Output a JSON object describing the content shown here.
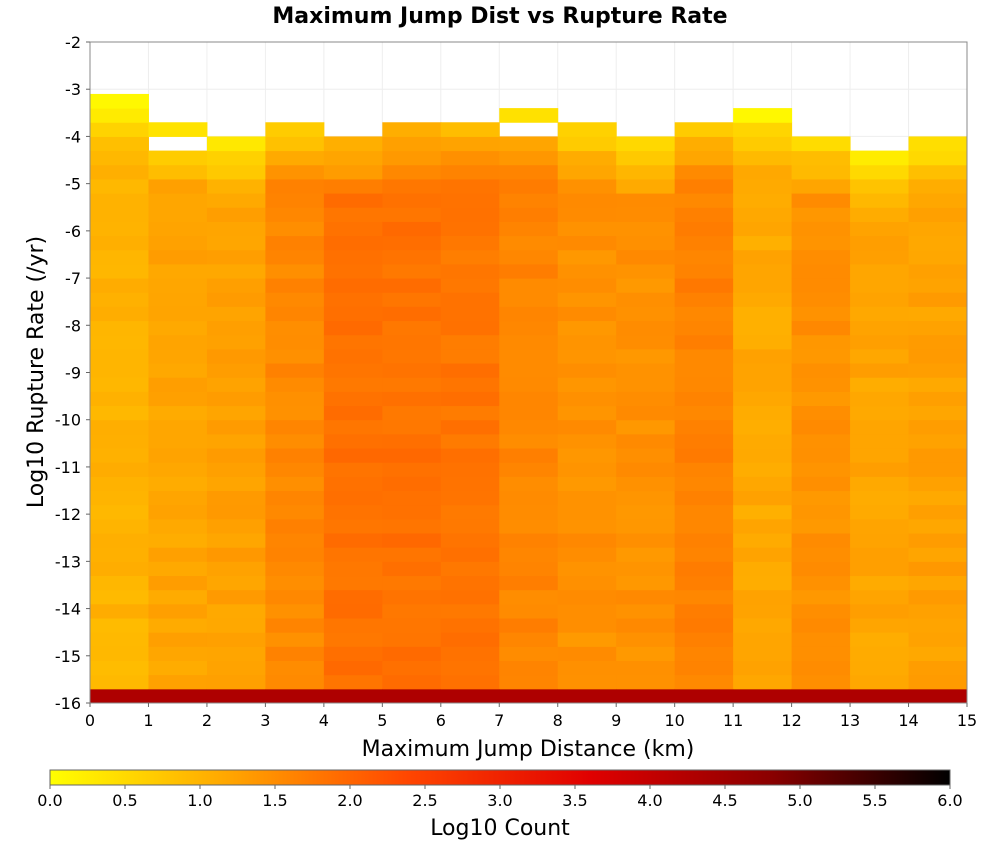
{
  "chart_data": {
    "type": "heatmap",
    "title": "Maximum Jump Dist vs Rupture Rate",
    "xlabel": "Maximum Jump Distance (km)",
    "ylabel": "Log10 Rupture Rate (/yr)",
    "xlim": [
      0,
      15
    ],
    "ylim": [
      -16,
      -2
    ],
    "x_ticks": [
      "0",
      "1",
      "2",
      "3",
      "4",
      "5",
      "6",
      "7",
      "8",
      "9",
      "10",
      "11",
      "12",
      "13",
      "14",
      "15"
    ],
    "y_ticks": [
      "-2",
      "-3",
      "-4",
      "-5",
      "-6",
      "-7",
      "-8",
      "-9",
      "-10",
      "-11",
      "-12",
      "-13",
      "-14",
      "-15",
      "-16"
    ],
    "x_bin_width": 1,
    "y_bin_width": 0.3,
    "colorbar": {
      "label": "Log10 Count",
      "range": [
        0,
        6
      ],
      "ticks": [
        "0.0",
        "0.5",
        "1.0",
        "1.5",
        "2.0",
        "2.5",
        "3.0",
        "3.5",
        "4.0",
        "4.5",
        "5.0",
        "5.5",
        "6.0"
      ],
      "colors": [
        "#ffff00",
        "#ffa500",
        "#ff4500",
        "#e00000",
        "#8b0000",
        "#000000"
      ]
    },
    "grid": true,
    "column_tops": [
      -3.0,
      -3.6,
      -3.9,
      -3.6,
      -3.9,
      -3.6,
      -3.6,
      -3.3,
      -3.6,
      -3.9,
      -3.6,
      -3.3,
      -3.9,
      -4.2,
      -3.9
    ],
    "column_base_log_count": [
      1.0,
      1.2,
      1.25,
      1.55,
      1.85,
      1.85,
      1.8,
      1.6,
      1.45,
      1.45,
      1.65,
      1.15,
      1.45,
      1.2,
      1.25
    ],
    "bottom_row_log_count": 4.3,
    "notable_bins": [
      {
        "x": 0.5,
        "y": -3.15,
        "log_count": 0.1
      },
      {
        "x": 11.5,
        "y": -3.45,
        "log_count": 0.1
      },
      {
        "x": 7.5,
        "y": -3.45,
        "log_count": 0.4
      },
      {
        "x": 1.5,
        "y": -4.05,
        "log_count": null
      },
      {
        "x": 7.5,
        "y": -3.75,
        "log_count": null
      }
    ]
  }
}
